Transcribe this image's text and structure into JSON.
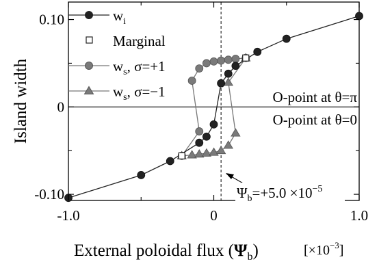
{
  "chart_data": {
    "type": "line",
    "xlabel": "External poloidal flux (Ψb)",
    "xlabel_parts": {
      "text": "External poloidal flux (",
      "sym": "Ψ",
      "sub": "b",
      "close": ")"
    },
    "x_multiplier": {
      "base": "[×10",
      "exp": "−3",
      "close": "]"
    },
    "ylabel": "Island width",
    "xlim": [
      -1.0,
      1.0
    ],
    "ylim": [
      -0.107,
      0.12
    ],
    "x_ticks": [
      {
        "value": -1.0,
        "label": "-1.0"
      },
      {
        "value": 0.0,
        "label": "0"
      },
      {
        "value": 1.0,
        "label": "1.0"
      }
    ],
    "x_minor_ticks": [
      -0.5,
      0.5
    ],
    "y_ticks": [
      {
        "value": 0.1,
        "label": "0.10"
      },
      {
        "value": 0.0,
        "label": "0"
      },
      {
        "value": -0.1,
        "label": "-0.10"
      }
    ],
    "y_minor_ticks": [
      0.05,
      -0.05
    ],
    "reference_line": {
      "x": 0.05,
      "label": "Ψb=+5.0 ×10−5",
      "sym": "Ψ",
      "sub": "b",
      "text": "=+5.0 ×10",
      "exp": "−5"
    },
    "region_labels": [
      {
        "text": "O-point at θ=π",
        "position": "above-zero-line"
      },
      {
        "text": "O-point at θ=0",
        "position": "below-zero-line"
      }
    ],
    "legend_position": "top-left",
    "series": [
      {
        "name": "wi",
        "legend_main": "w",
        "legend_sub": "i",
        "legend_rest": "",
        "marker": "circle",
        "color": "#222222",
        "fill": "#222222",
        "points": [
          [
            -1.0,
            -0.104
          ],
          [
            -0.5,
            -0.078
          ],
          [
            -0.3,
            -0.062
          ],
          [
            -0.1,
            -0.041
          ],
          [
            -0.05,
            -0.034
          ],
          [
            0.0,
            -0.02
          ],
          [
            0.05,
            0.027
          ],
          [
            0.1,
            0.038
          ],
          [
            0.15,
            0.047
          ],
          [
            0.3,
            0.063
          ],
          [
            0.5,
            0.078
          ],
          [
            1.0,
            0.104
          ]
        ]
      },
      {
        "name": "Marginal",
        "legend_main": "Marginal",
        "legend_sub": "",
        "legend_rest": "",
        "marker": "square-open",
        "color": "#222222",
        "fill": "#ffffff",
        "points": [
          [
            -0.22,
            -0.056
          ],
          [
            0.22,
            0.056
          ]
        ]
      },
      {
        "name": "ws, σ=+1",
        "legend_main": "w",
        "legend_sub": "s",
        "legend_rest": ", σ=+1",
        "marker": "circle",
        "color": "#777777",
        "fill": "#7a7a7a",
        "points": [
          [
            -0.22,
            -0.056
          ],
          [
            -0.1,
            -0.028
          ],
          [
            -0.15,
            0.03
          ],
          [
            -0.1,
            0.044
          ],
          [
            -0.05,
            0.05
          ],
          [
            0.0,
            0.052
          ],
          [
            0.05,
            0.053
          ],
          [
            0.1,
            0.054
          ],
          [
            0.15,
            0.055
          ],
          [
            0.22,
            0.056
          ]
        ]
      },
      {
        "name": "ws, σ=−1",
        "legend_main": "w",
        "legend_sub": "s",
        "legend_rest": ", σ=−1",
        "marker": "triangle",
        "color": "#777777",
        "fill": "#7a7a7a",
        "points": [
          [
            -0.22,
            -0.056
          ],
          [
            -0.15,
            -0.055
          ],
          [
            -0.1,
            -0.054
          ],
          [
            -0.05,
            -0.053
          ],
          [
            0.0,
            -0.052
          ],
          [
            0.05,
            -0.05
          ],
          [
            0.1,
            -0.044
          ],
          [
            0.15,
            -0.03
          ],
          [
            0.1,
            0.028
          ],
          [
            0.22,
            0.056
          ]
        ]
      }
    ]
  }
}
